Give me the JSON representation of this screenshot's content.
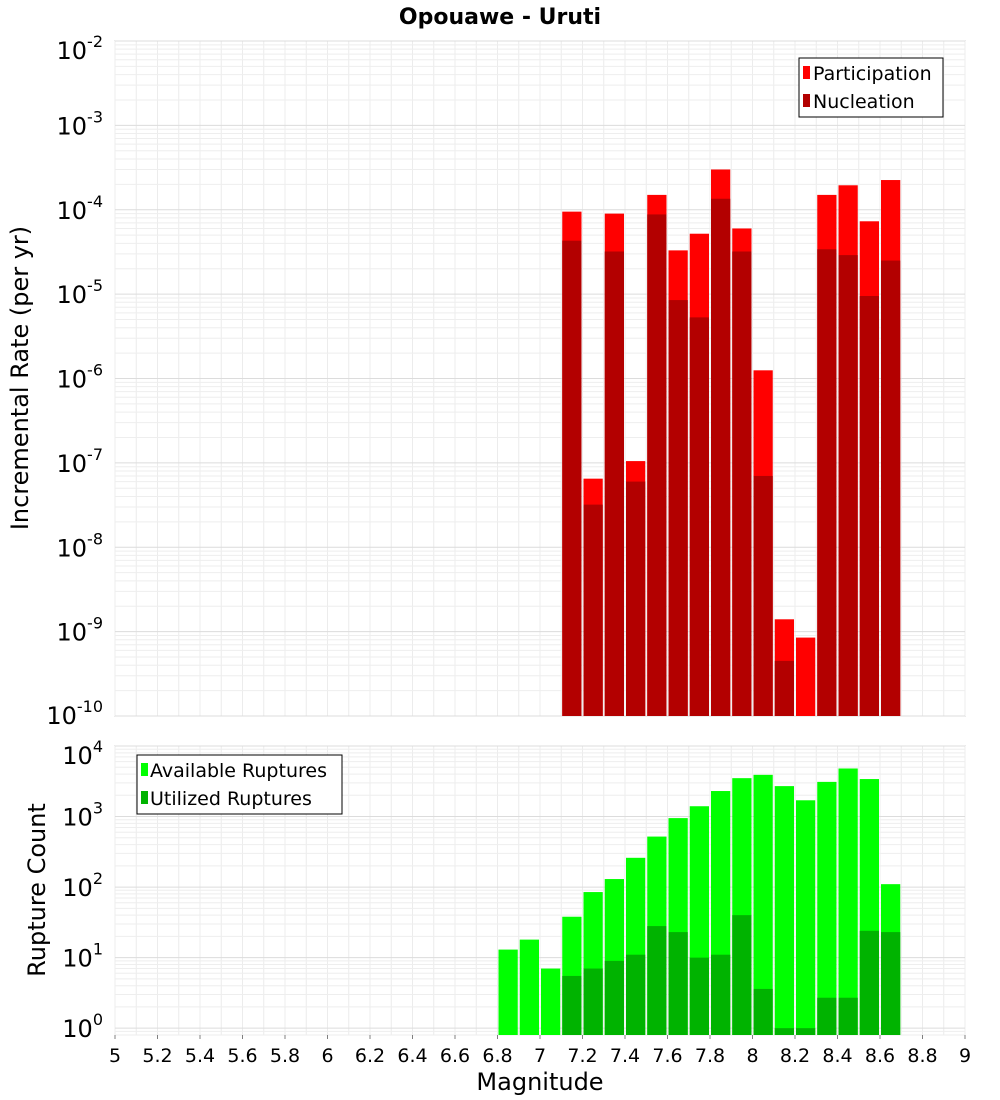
{
  "chart_data": [
    {
      "type": "bar",
      "title": "Opouawe - Uruti",
      "xlabel": "",
      "ylabel": "Incremental Rate (per yr)",
      "yscale": "log",
      "ylim": [
        1e-10,
        0.01
      ],
      "xlim": [
        5,
        9
      ],
      "bin_width": 0.1,
      "y_ticks": [
        {
          "base": "10",
          "exp": "-10",
          "value": 1e-10
        },
        {
          "base": "10",
          "exp": "-9",
          "value": 1e-09
        },
        {
          "base": "10",
          "exp": "-8",
          "value": 1e-08
        },
        {
          "base": "10",
          "exp": "-7",
          "value": 1e-07
        },
        {
          "base": "10",
          "exp": "-6",
          "value": 1e-06
        },
        {
          "base": "10",
          "exp": "-5",
          "value": 1e-05
        },
        {
          "base": "10",
          "exp": "-4",
          "value": 0.0001
        },
        {
          "base": "10",
          "exp": "-3",
          "value": 0.001
        },
        {
          "base": "10",
          "exp": "-2",
          "value": 0.01
        }
      ],
      "legend": {
        "position": "top-right",
        "entries": [
          {
            "label": "Participation",
            "color": "#ff0000"
          },
          {
            "label": "Nucleation",
            "color": "#b30000"
          }
        ]
      },
      "series": [
        {
          "name": "Participation",
          "color": "#ff0000",
          "x": [
            7.15,
            7.25,
            7.35,
            7.45,
            7.55,
            7.65,
            7.75,
            7.85,
            7.95,
            8.05,
            8.15,
            8.25,
            8.35,
            8.45,
            8.55,
            8.65
          ],
          "values": [
            9.5e-05,
            6.5e-08,
            9e-05,
            1.05e-07,
            0.00015,
            3.3e-05,
            5.2e-05,
            0.0003,
            6e-05,
            1.25e-06,
            1.4e-09,
            8.5e-10,
            0.00015,
            0.000195,
            7.3e-05,
            0.000225
          ]
        },
        {
          "name": "Nucleation",
          "color": "#b30000",
          "x": [
            7.15,
            7.25,
            7.35,
            7.45,
            7.55,
            7.65,
            7.75,
            7.85,
            7.95,
            8.05,
            8.15,
            8.25,
            8.35,
            8.45,
            8.55,
            8.65
          ],
          "values": [
            4.3e-05,
            3.2e-08,
            3.2e-05,
            6e-08,
            8.8e-05,
            8.5e-06,
            5.3e-06,
            0.000135,
            3.2e-05,
            7e-08,
            4.5e-10,
            null,
            3.4e-05,
            2.9e-05,
            9.5e-06,
            2.5e-05
          ]
        }
      ]
    },
    {
      "type": "bar",
      "title": "",
      "xlabel": "Magnitude",
      "ylabel": "Rupture Count",
      "yscale": "log",
      "ylim": [
        0.8,
        10000
      ],
      "xlim": [
        5,
        9
      ],
      "bin_width": 0.1,
      "x_ticks": [
        "5",
        "5.2",
        "5.4",
        "5.6",
        "5.8",
        "6",
        "6.2",
        "6.4",
        "6.6",
        "6.8",
        "7",
        "7.2",
        "7.4",
        "7.6",
        "7.8",
        "8",
        "8.2",
        "8.4",
        "8.6",
        "8.8",
        "9"
      ],
      "y_ticks": [
        {
          "base": "10",
          "exp": "0",
          "value": 1
        },
        {
          "base": "10",
          "exp": "1",
          "value": 10
        },
        {
          "base": "10",
          "exp": "2",
          "value": 100
        },
        {
          "base": "10",
          "exp": "3",
          "value": 1000
        },
        {
          "base": "10",
          "exp": "4",
          "value": 10000
        }
      ],
      "legend": {
        "position": "top-left",
        "entries": [
          {
            "label": "Available Ruptures",
            "color": "#00ff00"
          },
          {
            "label": "Utilized Ruptures",
            "color": "#00b300"
          }
        ]
      },
      "series": [
        {
          "name": "Available Ruptures",
          "color": "#00ff00",
          "x": [
            6.85,
            6.95,
            7.05,
            7.15,
            7.25,
            7.35,
            7.45,
            7.55,
            7.65,
            7.75,
            7.85,
            7.95,
            8.05,
            8.15,
            8.25,
            8.35,
            8.45,
            8.55,
            8.65
          ],
          "values": [
            13,
            18,
            7,
            38,
            85,
            130,
            260,
            520,
            950,
            1400,
            2300,
            3500,
            3900,
            2700,
            1700,
            3100,
            4800,
            3400,
            110
          ]
        },
        {
          "name": "Utilized Ruptures",
          "color": "#00b300",
          "x": [
            7.15,
            7.25,
            7.35,
            7.45,
            7.55,
            7.65,
            7.75,
            7.85,
            7.95,
            8.05,
            8.15,
            8.25,
            8.35,
            8.45,
            8.55,
            8.65
          ],
          "values": [
            5.5,
            7,
            9,
            11,
            28,
            23,
            10,
            11,
            40,
            3.6,
            1,
            1,
            2.7,
            2.7,
            24,
            23
          ]
        }
      ]
    }
  ]
}
